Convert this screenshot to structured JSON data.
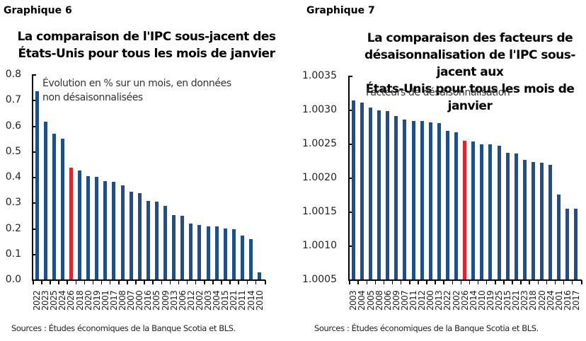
{
  "chart_data": [
    {
      "type": "bar",
      "label": "Graphique 6",
      "title": "La comparaison de l'IPC sous-jacent des États-Unis pour tous les mois de janvier",
      "title_lines": [
        "La comparaison de l'IPC sous-jacent des",
        "États-Unis pour tous les mois de janvier"
      ],
      "subtitle_lines": [
        "Évolution en % sur un mois, en données",
        "non désaisonnalisées"
      ],
      "xlabel": "",
      "ylabel": "",
      "ylim": [
        0,
        0.8
      ],
      "yticks": [
        "0.0",
        "0.1",
        "0.2",
        "0.3",
        "0.4",
        "0.5",
        "0.6",
        "0.7",
        "0.8"
      ],
      "highlight": "2026",
      "highlight_color": "#e8202a",
      "bar_color": "#1f4e8c",
      "categories": [
        "2022",
        "2023",
        "2025",
        "2024",
        "2026",
        "2018",
        "2020",
        "2019",
        "2001",
        "2017",
        "2008",
        "2007",
        "2000",
        "2016",
        "2005",
        "2009",
        "2013",
        "2006",
        "2012",
        "2002",
        "2003",
        "2004",
        "2015",
        "2021",
        "2011",
        "2014",
        "2010"
      ],
      "values": [
        0.733,
        0.614,
        0.567,
        0.549,
        0.437,
        0.426,
        0.402,
        0.4,
        0.383,
        0.38,
        0.368,
        0.341,
        0.336,
        0.306,
        0.303,
        0.286,
        0.25,
        0.247,
        0.218,
        0.212,
        0.208,
        0.206,
        0.198,
        0.196,
        0.172,
        0.156,
        0.028
      ],
      "source": "Sources : Études économiques de la Banque Scotia et BLS.",
      "grid": false,
      "legend": "none"
    },
    {
      "type": "bar",
      "label": "Graphique 7",
      "title": "La comparaison des facteurs de désaisonnalisation de l'IPC sous-jacent aux États-Unis pour tous les mois de janvier",
      "title_lines": [
        "La comparaison des facteurs de",
        "désaisonnalisation de l'IPC sous-jacent aux",
        "États-Unis pour tous les mois de janvier"
      ],
      "subtitle_lines": [
        "Facteurs de désaisonnalisation"
      ],
      "xlabel": "",
      "ylabel": "",
      "ylim": [
        1.0005,
        1.0035
      ],
      "yticks": [
        "1.0005",
        "1.0010",
        "1.0015",
        "1.0020",
        "1.0025",
        "1.0030",
        "1.0035"
      ],
      "highlight": "2026",
      "highlight_color": "#e8202a",
      "bar_color": "#1f4e8c",
      "categories": [
        "2003",
        "2004",
        "2005",
        "2008",
        "2006",
        "2009",
        "2007",
        "2011",
        "2012",
        "2000",
        "2013",
        "2022",
        "2002",
        "2026",
        "2014",
        "2010",
        "2019",
        "2025",
        "2015",
        "2021",
        "2023",
        "2018",
        "2020",
        "2024",
        "2001",
        "2016",
        "2017"
      ],
      "values": [
        1.00314,
        1.0031,
        1.00303,
        1.00299,
        1.00298,
        1.00291,
        1.00285,
        1.00283,
        1.00283,
        1.00281,
        1.0028,
        1.00269,
        1.00267,
        1.00254,
        1.00253,
        1.00249,
        1.00249,
        1.00247,
        1.00236,
        1.00235,
        1.00226,
        1.00223,
        1.00222,
        1.00219,
        1.00175,
        1.00154,
        1.00154
      ],
      "source": "Sources : Études économiques de la Banque Scotia et BLS.",
      "grid": false,
      "legend": "none"
    }
  ]
}
